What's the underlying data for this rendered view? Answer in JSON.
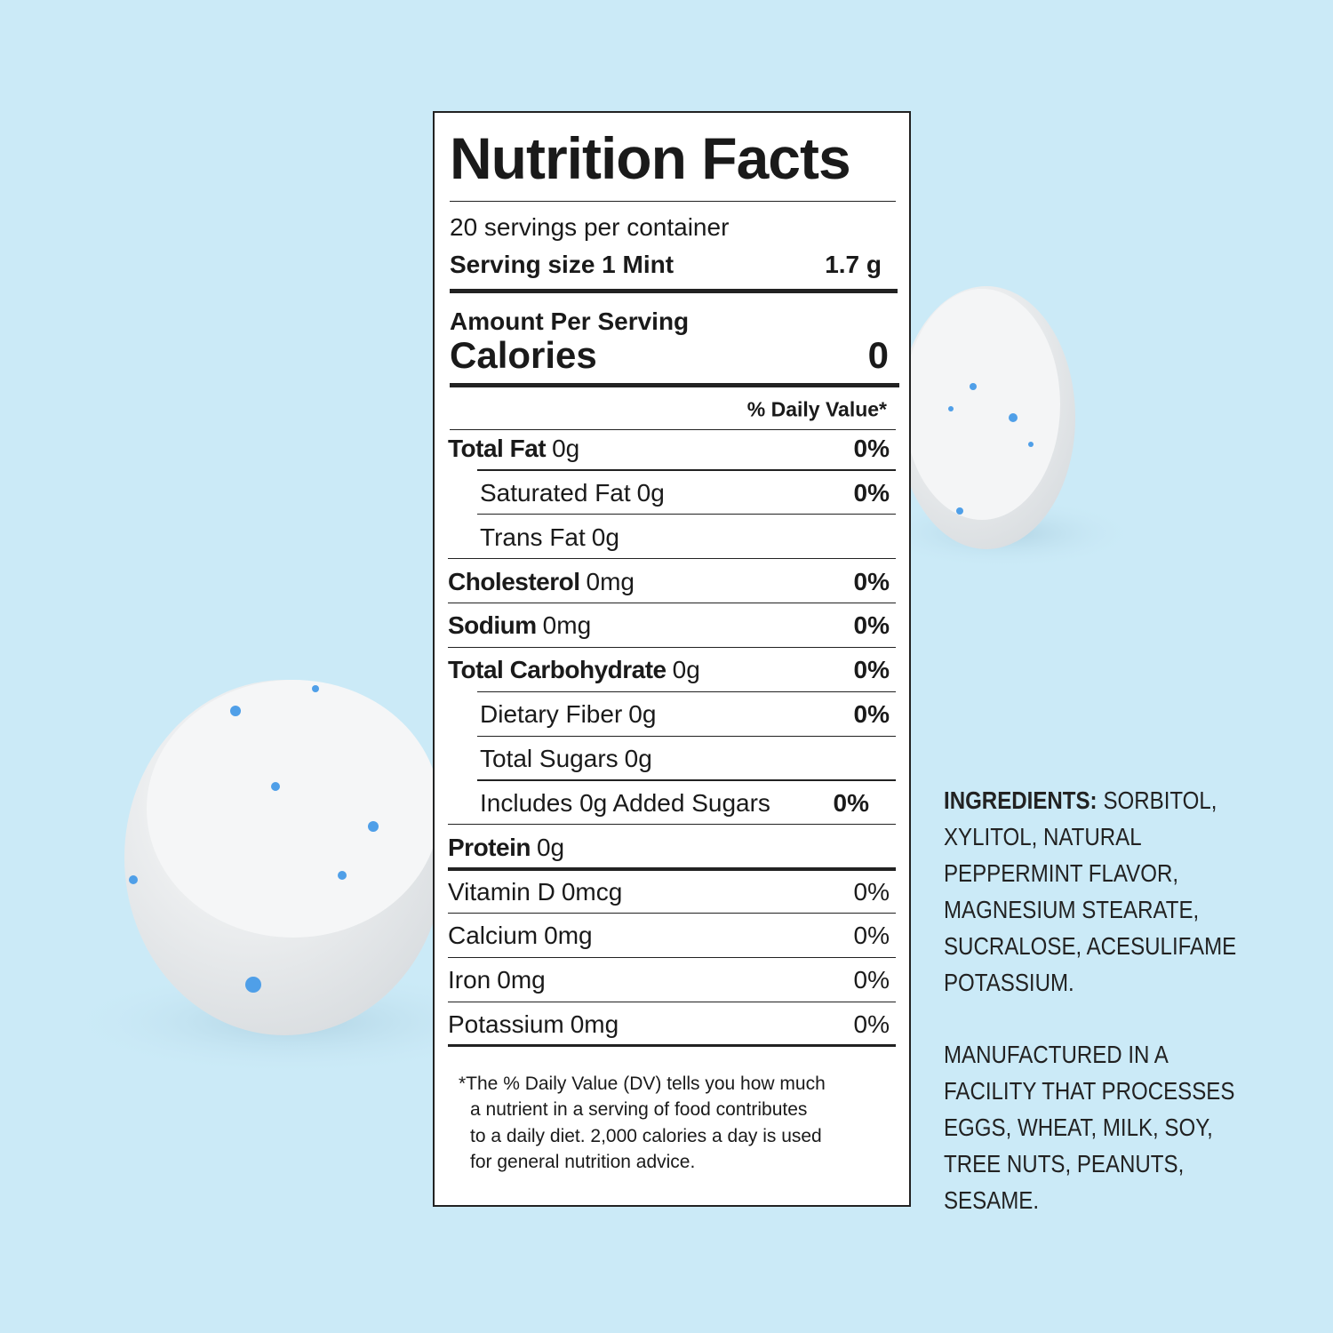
{
  "label": {
    "title": "Nutrition Facts",
    "servings": "20 servings per container",
    "serving_size_label": "Serving size 1 Mint",
    "serving_size_value": "1.7 g",
    "amount_per_serving": "Amount Per Serving",
    "calories_label": "Calories",
    "calories_value": 0,
    "dv_header": "% Daily Value*",
    "nutrients": [
      {
        "name": "Total Fat",
        "amount": "0g",
        "dv": "0%"
      },
      {
        "name": "Saturated Fat",
        "amount": "0g",
        "dv": "0%",
        "indent": true
      },
      {
        "name": "Trans Fat",
        "amount": "0g",
        "indent": true
      },
      {
        "name": "Cholesterol",
        "amount": "0mg",
        "dv": "0%"
      },
      {
        "name": "Sodium",
        "amount": "0mg",
        "dv": "0%"
      },
      {
        "name": "Total Carbohydrate",
        "amount": "0g",
        "dv": "0%"
      },
      {
        "name": "Dietary Fiber",
        "amount": "0g",
        "dv": "0%",
        "indent": true
      },
      {
        "name": "Total Sugars",
        "amount": "0g",
        "indent": true
      },
      {
        "name": "Includes 0g Added Sugars",
        "dv": "0%",
        "indent": true
      },
      {
        "name": "Protein",
        "amount": "0g"
      }
    ],
    "vitamins": [
      {
        "name": "Vitamin D",
        "amount": "0mcg",
        "dv": "0%"
      },
      {
        "name": "Calcium",
        "amount": "0mg",
        "dv": "0%"
      },
      {
        "name": "Iron",
        "amount": "0mg",
        "dv": "0%"
      },
      {
        "name": "Potassium",
        "amount": "0mg",
        "dv": "0%"
      }
    ],
    "footnote": [
      "*The % Daily Value (DV) tells you how much",
      "a nutrient in a serving of food contributes",
      "to a daily diet. 2,000 calories a day is used",
      "for general nutrition advice."
    ]
  },
  "ingredients": {
    "heading": "INGREDIENTS:",
    "lines": [
      "SORBITOL,",
      "XYLITOL, NATURAL",
      "PEPPERMINT FLAVOR,",
      "MAGNESIUM STEARATE,",
      "SUCRALOSE, ACESULIFAME",
      "POTASSIUM."
    ]
  },
  "allergens": {
    "lines": [
      "MANUFACTURED IN A",
      "FACILITY THAT PROCESSES",
      "EGGS, WHEAT, MILK, SOY,",
      "TREE NUTS, PEANUTS,",
      "SESAME."
    ]
  }
}
